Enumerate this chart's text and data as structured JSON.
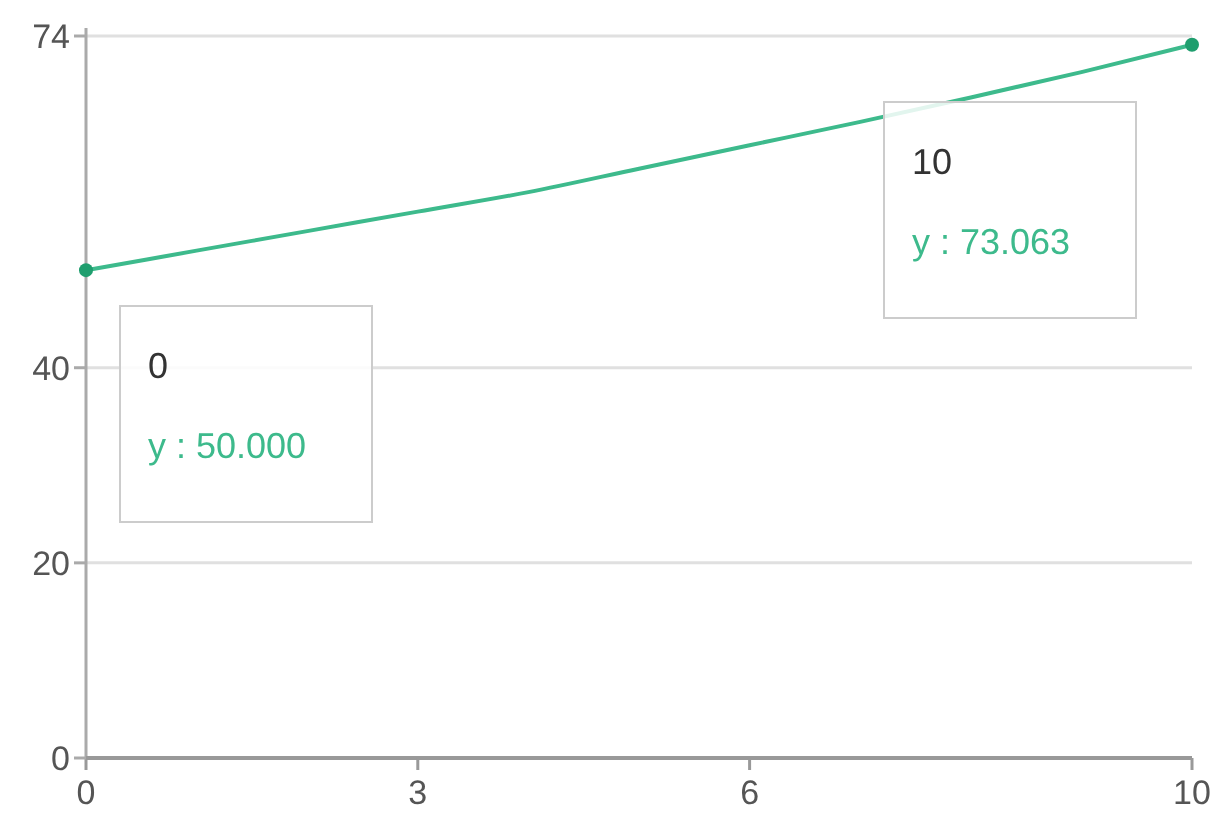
{
  "chart_data": {
    "type": "line",
    "xlim": [
      0,
      10
    ],
    "xticks": [
      0,
      3,
      6,
      10
    ],
    "ylim": [
      0,
      74
    ],
    "yticks": [
      0,
      20,
      40,
      74
    ],
    "grid": "y",
    "series": [
      {
        "color": "#3dba8c",
        "x": [
          0,
          1,
          2,
          3,
          4,
          5,
          6,
          7,
          8,
          9,
          10
        ],
        "values": [
          50,
          52,
          54,
          56,
          58,
          60.4,
          62.8,
          65.2,
          67.7,
          70.3,
          73.1
        ],
        "marker": "none"
      },
      {
        "type": "scatter",
        "color": "#1f9e6e",
        "x": [
          0,
          10
        ],
        "values": [
          50,
          73.1
        ],
        "marker": "circle"
      }
    ],
    "annotations": [
      "0\ny : 50.000",
      "10\ny : 73.063"
    ]
  }
}
